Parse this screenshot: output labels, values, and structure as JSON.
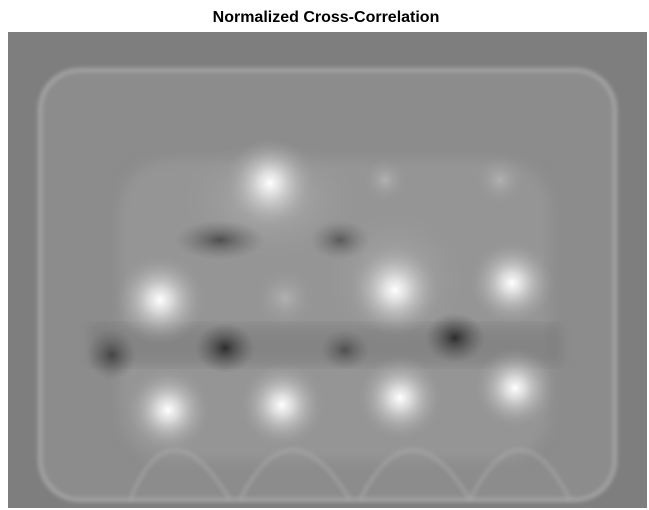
{
  "header": {
    "title": "Normalized Cross-Correlation"
  }
}
